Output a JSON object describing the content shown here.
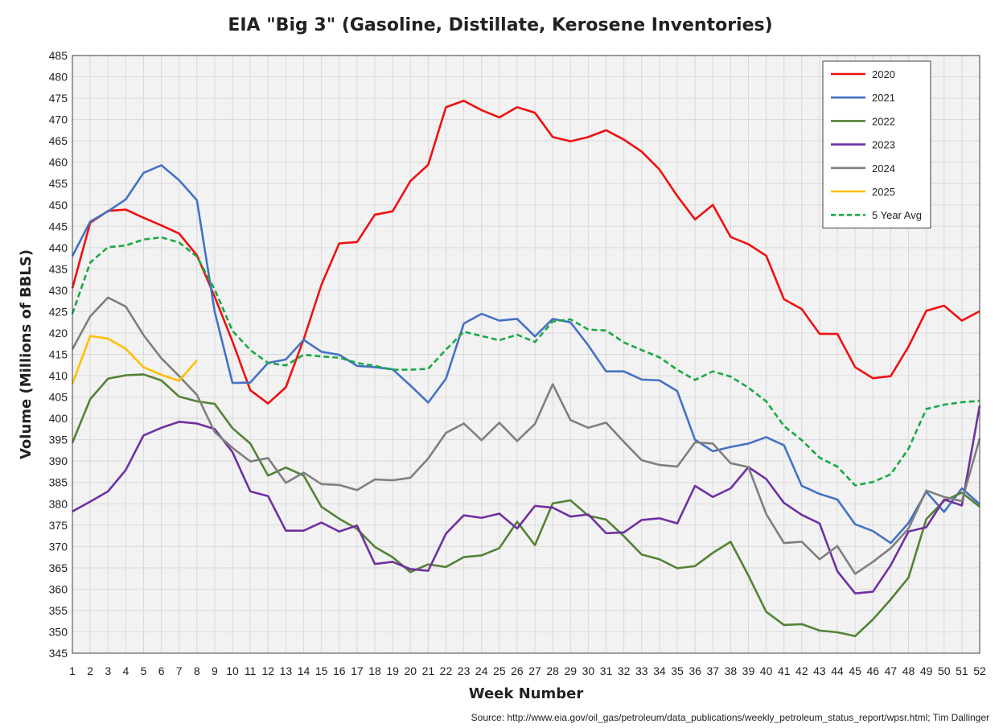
{
  "chart_data": {
    "type": "line",
    "title": "EIA \"Big 3\" (Gasoline, Distillate, Kerosene Inventories)",
    "xlabel": "Week Number",
    "ylabel": "Volume (Millions of BBLS)",
    "source": "Source: http://www.eia.gov/oil_gas/petroleum/data_publications/weekly_petroleum_status_report/wpsr.html; Tim Dallinger",
    "xlim": [
      1,
      52
    ],
    "ylim": [
      345,
      485
    ],
    "ytick_step": 5,
    "grid": true,
    "legend_position": "top-right",
    "series": [
      {
        "name": "2020",
        "color": "#ee1111",
        "dashed": false,
        "values": [
          430.5,
          445.8,
          448.6,
          448.9,
          447,
          445.2,
          443.3,
          438.2,
          428.5,
          418,
          406.6,
          403.5,
          407.3,
          418.5,
          431.3,
          441,
          441.3,
          447.7,
          448.5,
          455.6,
          459.4,
          472.9,
          474.4,
          472.2,
          470.5,
          472.9,
          471.6,
          465.9,
          464.9,
          465.9,
          467.5,
          465.3,
          462.5,
          458.3,
          452.1,
          446.6,
          450,
          442.5,
          440.8,
          438.1,
          427.9,
          425.6,
          419.8,
          419.8,
          412,
          409.4,
          409.9,
          416.8,
          425.2,
          426.4,
          422.9,
          425.1
        ]
      },
      {
        "name": "2021",
        "color": "#4472c4",
        "dashed": false,
        "values": [
          438,
          446.1,
          448.5,
          451.3,
          457.5,
          459.3,
          455.8,
          451.1,
          425,
          408.3,
          408.4,
          413,
          413.8,
          418.4,
          415.6,
          414.9,
          412.3,
          412,
          411.5,
          407.7,
          403.7,
          409.3,
          422.2,
          424.5,
          422.9,
          423.3,
          419.2,
          423.3,
          422.5,
          417.1,
          411,
          411,
          409.1,
          408.9,
          406.4,
          395,
          392.3,
          393.3,
          394.1,
          395.6,
          393.7,
          384.2,
          382.3,
          381,
          375.2,
          373.6,
          370.8,
          375.5,
          382.8,
          378.1,
          383.6,
          379.9
        ]
      },
      {
        "name": "2022",
        "color": "#548235",
        "dashed": false,
        "values": [
          394.3,
          404.5,
          409.3,
          410.1,
          410.3,
          408.9,
          405.1,
          404,
          403.4,
          397.7,
          394.1,
          386.6,
          388.5,
          386.6,
          379.3,
          376.5,
          374.1,
          369.9,
          367.5,
          364,
          365.8,
          365.2,
          367.5,
          367.9,
          369.6,
          375.8,
          370.3,
          380.1,
          380.8,
          377.2,
          376.3,
          372.4,
          368.1,
          367,
          364.9,
          365.4,
          368.5,
          371.1,
          363.2,
          354.7,
          351.6,
          351.8,
          350.3,
          349.9,
          349,
          352.9,
          357.6,
          362.7,
          376.4,
          380.7,
          382.6,
          379.3
        ]
      },
      {
        "name": "2023",
        "color": "#7030a0",
        "dashed": false,
        "values": [
          378.2,
          380.5,
          382.9,
          387.9,
          396,
          397.8,
          399.2,
          398.8,
          397.5,
          392.1,
          382.9,
          381.8,
          373.7,
          373.7,
          375.6,
          373.5,
          374.9,
          365.9,
          366.4,
          364.7,
          364.3,
          373,
          377.3,
          376.7,
          377.7,
          374.2,
          379.5,
          379.1,
          377,
          377.5,
          373.1,
          373.3,
          376.2,
          376.6,
          375.4,
          384.2,
          381.6,
          383.6,
          388.6,
          385.8,
          380.2,
          377.4,
          375.4,
          364.2,
          359,
          359.4,
          365.6,
          373.5,
          374.5,
          381,
          379.6,
          403
        ]
      },
      {
        "name": "2024",
        "color": "#7f7f7f",
        "dashed": false,
        "values": [
          416.2,
          423.9,
          428.3,
          426.2,
          419.5,
          414.1,
          409.9,
          405.5,
          396.8,
          393.1,
          389.9,
          390.7,
          384.9,
          387.3,
          384.6,
          384.4,
          383.2,
          385.7,
          385.5,
          386.1,
          390.6,
          396.6,
          398.8,
          394.9,
          399,
          394.7,
          398.7,
          408,
          399.6,
          397.8,
          399,
          394.5,
          390.2,
          389.1,
          388.7,
          394.4,
          394.1,
          389.5,
          388.6,
          377.6,
          370.8,
          371.1,
          367,
          370.1,
          363.6,
          366.4,
          369.6,
          374.2,
          383.1,
          381.6,
          380.6,
          395.3
        ]
      },
      {
        "name": "2025",
        "color": "#ffc000",
        "dashed": false,
        "values": [
          408.1,
          419.3,
          418.7,
          416.3,
          412,
          410.2,
          408.8,
          413.6
        ]
      },
      {
        "name": "5 Year Avg",
        "color": "#1aa845",
        "dashed": true,
        "values": [
          424.5,
          436.5,
          440.1,
          440.5,
          441.9,
          442.4,
          441.2,
          437.9,
          430.2,
          420.5,
          416,
          413,
          412.4,
          414.9,
          414.5,
          414.2,
          413,
          412.3,
          411.4,
          411.4,
          411.6,
          416.1,
          420.3,
          419.3,
          418.3,
          419.6,
          417.9,
          422.7,
          423.2,
          420.8,
          420.6,
          417.8,
          416,
          414.3,
          411.4,
          409,
          411,
          409.8,
          407.2,
          404,
          398.2,
          394.9,
          390.8,
          388.7,
          384.3,
          385.1,
          386.9,
          392.9,
          402.2,
          403.2,
          403.8,
          404.1
        ]
      }
    ]
  }
}
